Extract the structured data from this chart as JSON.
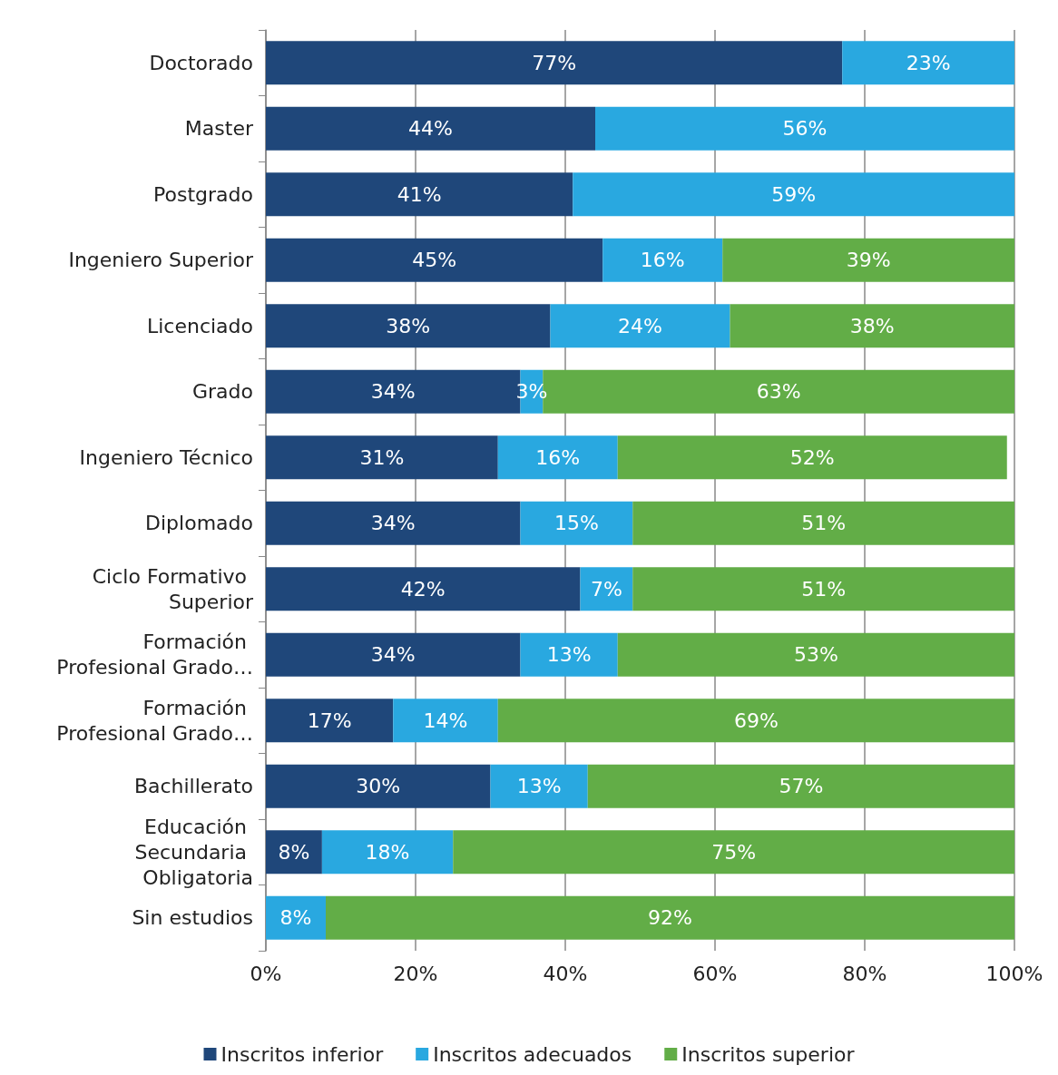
{
  "chart_data": {
    "type": "bar",
    "orientation": "horizontal",
    "stacked": true,
    "categories": [
      "Doctorado",
      "Master",
      "Postgrado",
      "Ingeniero Superior",
      "Licenciado",
      "Grado",
      "Ingeniero Técnico",
      "Diplomado",
      "Ciclo Formativo Superior",
      "Formación Profesional Grado…",
      "Formación Profesional Grado…",
      "Bachillerato",
      "Educación Secundaria Obligatoria",
      "Sin estudios"
    ],
    "series": [
      {
        "name": "Inscritos inferior",
        "color": "#1f477a",
        "values": [
          77,
          44,
          41,
          45,
          38,
          34,
          31,
          34,
          42,
          34,
          17,
          30,
          7.5,
          0
        ],
        "value_labels": [
          "77%",
          "44%",
          "41%",
          "45%",
          "38%",
          "34%",
          "31%",
          "34%",
          "42%",
          "34%",
          "17%",
          "30%",
          "8%",
          null
        ]
      },
      {
        "name": "Inscritos adecuados",
        "color": "#29a8e0",
        "values": [
          23,
          56,
          59,
          16,
          24,
          3,
          16,
          15,
          7,
          13,
          14,
          13,
          17.5,
          8
        ],
        "value_labels": [
          "23%",
          "56%",
          "59%",
          "16%",
          "24%",
          "3%",
          "16%",
          "15%",
          "7%",
          "13%",
          "14%",
          "13%",
          "18%",
          "8%"
        ]
      },
      {
        "name": "Inscritos superior",
        "color": "#62ad47",
        "values": [
          0,
          0,
          0,
          39,
          38,
          63,
          52,
          51,
          51,
          53,
          69,
          57,
          75,
          92
        ],
        "value_labels": [
          null,
          null,
          null,
          "39%",
          "38%",
          "63%",
          "52%",
          "51%",
          "51%",
          "53%",
          "69%",
          "57%",
          "75%",
          "92%"
        ]
      }
    ],
    "xlim": [
      0,
      100
    ],
    "xticks": [
      {
        "value": 0,
        "label": "0%"
      },
      {
        "value": 20,
        "label": "20%"
      },
      {
        "value": 40,
        "label": "40%"
      },
      {
        "value": 60,
        "label": "60%"
      },
      {
        "value": 80,
        "label": "80%"
      },
      {
        "value": 100,
        "label": "100%"
      }
    ],
    "grid": "x",
    "legend": "bottom"
  }
}
